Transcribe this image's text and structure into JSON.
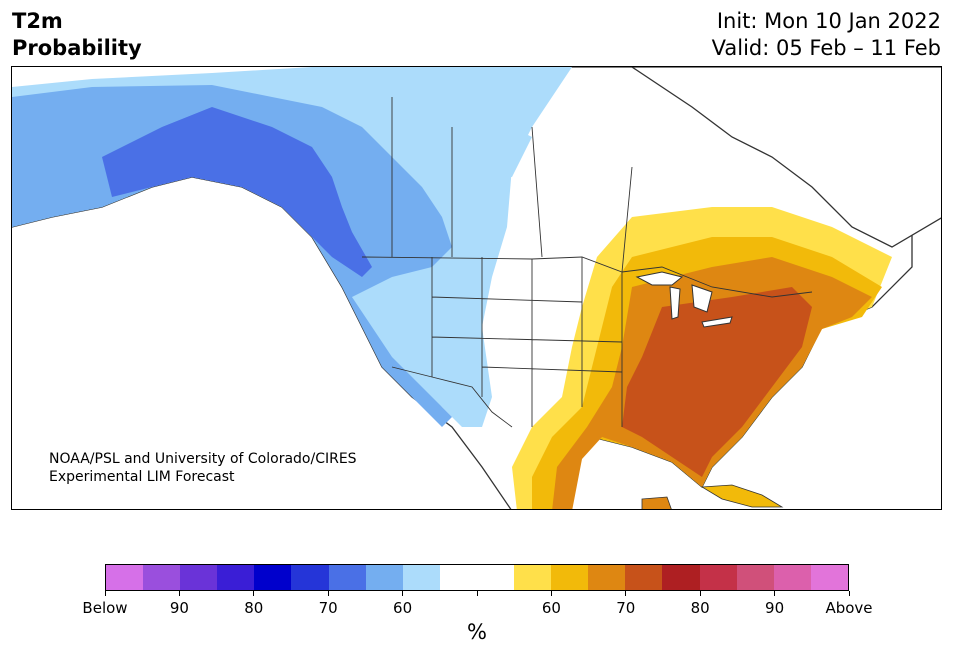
{
  "title": {
    "line1": "T2m",
    "line2": "Probability"
  },
  "init": {
    "line1": "Init: Mon 10 Jan 2022",
    "line2": "Valid: 05 Feb – 11 Feb"
  },
  "credit": {
    "line1": "NOAA/PSL and University of Colorado/CIRES",
    "line2": "Experimental LIM Forecast"
  },
  "colorbar": {
    "unit": "%",
    "colors": [
      "#d670e8",
      "#9a4fdd",
      "#6a33d8",
      "#3a1ed6",
      "#0000cc",
      "#2535d8",
      "#4a70e6",
      "#74aef0",
      "#acdcfb",
      "#ffffff",
      "#ffffff",
      "#ffe04a",
      "#f2ba0a",
      "#de8712",
      "#c7521a",
      "#ae1f22",
      "#c43148",
      "#d0507a",
      "#dc60ac",
      "#e274da"
    ],
    "labels": [
      "Below",
      "90",
      "80",
      "70",
      "60",
      "",
      "60",
      "70",
      "80",
      "90",
      "Above"
    ]
  },
  "map_colors": {
    "below_50": "#4a70e6",
    "below_60": "#74aef0",
    "below_40": "#acdcfb",
    "above_40": "#ffe04a",
    "above_50": "#f2ba0a",
    "above_60": "#de8712",
    "above_70": "#c7521a",
    "land_neutral": "#ffffff",
    "ocean": "#ffffff"
  }
}
